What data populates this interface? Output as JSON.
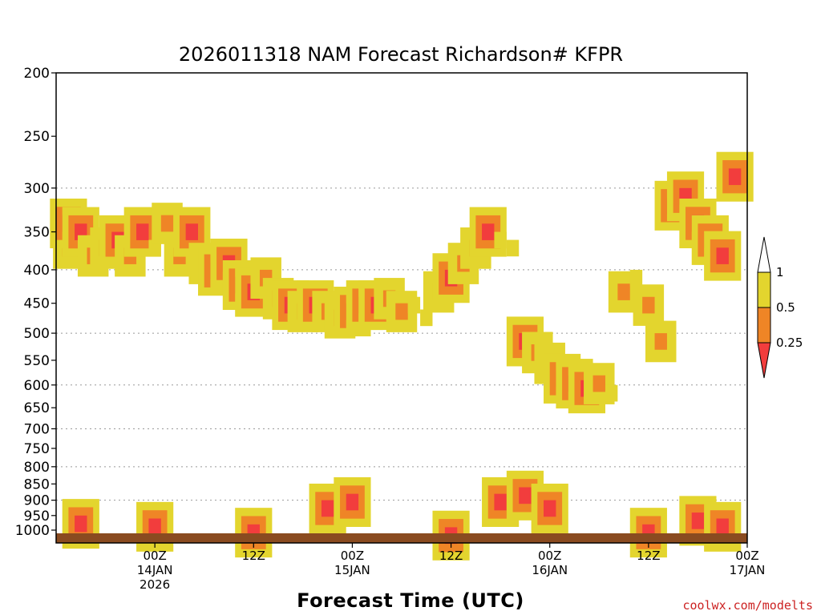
{
  "chart_data": {
    "type": "heatmap",
    "title": "2026011318 NAM Forecast Richardson# KFPR",
    "xlabel": "Forecast Time (UTC)",
    "ylabel": "",
    "credit": "coolwx.com/modelts",
    "y_ticks": [
      200,
      250,
      300,
      350,
      400,
      450,
      500,
      550,
      600,
      650,
      700,
      750,
      800,
      850,
      900,
      950,
      1000
    ],
    "y_gridlines": [
      300,
      400,
      500,
      600,
      700,
      800,
      900
    ],
    "ylim": [
      200,
      1015
    ],
    "x_range_hours": [
      -6,
      78
    ],
    "x_ticks": [
      {
        "hour": 6,
        "l1": "00Z",
        "l2": "14JAN",
        "l3": "2026"
      },
      {
        "hour": 18,
        "l1": "12Z",
        "l2": "",
        "l3": ""
      },
      {
        "hour": 30,
        "l1": "00Z",
        "l2": "15JAN",
        "l3": ""
      },
      {
        "hour": 42,
        "l1": "12Z",
        "l2": "",
        "l3": ""
      },
      {
        "hour": 54,
        "l1": "00Z",
        "l2": "16JAN",
        "l3": ""
      },
      {
        "hour": 66,
        "l1": "12Z",
        "l2": "",
        "l3": ""
      },
      {
        "hour": 78,
        "l1": "00Z",
        "l2": "17JAN",
        "l3": ""
      }
    ],
    "legend": {
      "labels": [
        "1",
        "0.5",
        "0.25"
      ],
      "colors": {
        "above_1": "#ffffff",
        "0.5-1": "#e3d52e",
        "0.25-0.5": "#ef8526",
        "below_0.25": "#f23d3d"
      }
    },
    "categories": [
      "<0.25",
      "0.25-0.5",
      "0.5-1",
      ">1"
    ],
    "cells": [
      {
        "t": -4.5,
        "p": 360,
        "c": "0.25-0.5"
      },
      {
        "t": -4.5,
        "p": 330,
        "c": "<0.25"
      },
      {
        "t": -3,
        "p": 340,
        "c": "<0.25"
      },
      {
        "t": -1.5,
        "p": 370,
        "c": "0.25-0.5"
      },
      {
        "t": 0,
        "p": 360,
        "c": "0.25-0.5"
      },
      {
        "t": 1.5,
        "p": 350,
        "c": "<0.25"
      },
      {
        "t": 3,
        "p": 370,
        "c": "0.25-0.5"
      },
      {
        "t": 4.5,
        "p": 340,
        "c": "<0.25"
      },
      {
        "t": 6,
        "p": 360,
        "c": "0.5-1"
      },
      {
        "t": 7.5,
        "p": 330,
        "c": "0.25-0.5"
      },
      {
        "t": 9,
        "p": 370,
        "c": "0.25-0.5"
      },
      {
        "t": 10.5,
        "p": 340,
        "c": "<0.25"
      },
      {
        "t": 12,
        "p": 380,
        "c": "0.25-0.5"
      },
      {
        "t": 13.5,
        "p": 390,
        "c": "<0.25"
      },
      {
        "t": 15,
        "p": 380,
        "c": "<0.25"
      },
      {
        "t": 16.5,
        "p": 410,
        "c": "<0.25"
      },
      {
        "t": 18,
        "p": 420,
        "c": "<0.25"
      },
      {
        "t": 19.5,
        "p": 400,
        "c": "0.25-0.5"
      },
      {
        "t": 21,
        "p": 430,
        "c": "0.25-0.5"
      },
      {
        "t": 22.5,
        "p": 440,
        "c": "<0.25"
      },
      {
        "t": 24,
        "p": 450,
        "c": "0.25-0.5"
      },
      {
        "t": 25.5,
        "p": 440,
        "c": "<0.25"
      },
      {
        "t": 27,
        "p": 450,
        "c": "0.25-0.5"
      },
      {
        "t": 28.5,
        "p": 460,
        "c": "0.25-0.5"
      },
      {
        "t": 30,
        "p": 450,
        "c": "<0.25"
      },
      {
        "t": 31.5,
        "p": 440,
        "c": "<0.25"
      },
      {
        "t": 33,
        "p": 440,
        "c": "<0.25"
      },
      {
        "t": 34.5,
        "p": 430,
        "c": "0.25-0.5"
      },
      {
        "t": 36,
        "p": 450,
        "c": "0.25-0.5"
      },
      {
        "t": 37.5,
        "p": 440,
        "c": "0.5-1"
      },
      {
        "t": 39,
        "p": 460,
        "c": "0.5-1"
      },
      {
        "t": 40.5,
        "p": 420,
        "c": "0.25-0.5"
      },
      {
        "t": 42,
        "p": 400,
        "c": "<0.25"
      },
      {
        "t": 43.5,
        "p": 380,
        "c": "0.25-0.5"
      },
      {
        "t": 45,
        "p": 360,
        "c": "0.25-0.5"
      },
      {
        "t": 46.5,
        "p": 340,
        "c": "<0.25"
      },
      {
        "t": 48,
        "p": 350,
        "c": "0.5-1"
      },
      {
        "t": 49.5,
        "p": 360,
        "c": "0.5-1"
      },
      {
        "t": 51,
        "p": 500,
        "c": "<0.25"
      },
      {
        "t": 52.5,
        "p": 520,
        "c": "0.25-0.5"
      },
      {
        "t": 54,
        "p": 540,
        "c": "0.25-0.5"
      },
      {
        "t": 55.5,
        "p": 570,
        "c": "<0.25"
      },
      {
        "t": 57,
        "p": 580,
        "c": "<0.25"
      },
      {
        "t": 58.5,
        "p": 590,
        "c": "<0.25"
      },
      {
        "t": 60,
        "p": 580,
        "c": "0.25-0.5"
      },
      {
        "t": 61.5,
        "p": 600,
        "c": "0.5-1"
      },
      {
        "t": 63,
        "p": 420,
        "c": "0.25-0.5"
      },
      {
        "t": 64.5,
        "p": 400,
        "c": "0.5-1"
      },
      {
        "t": 66,
        "p": 440,
        "c": "0.25-0.5"
      },
      {
        "t": 67.5,
        "p": 500,
        "c": "0.25-0.5"
      },
      {
        "t": 69,
        "p": 310,
        "c": "<0.25"
      },
      {
        "t": 70.5,
        "p": 300,
        "c": "<0.25"
      },
      {
        "t": 72,
        "p": 330,
        "c": "<0.25"
      },
      {
        "t": 73.5,
        "p": 350,
        "c": "<0.25"
      },
      {
        "t": 75,
        "p": 370,
        "c": "<0.25"
      },
      {
        "t": 76.5,
        "p": 280,
        "c": "<0.25"
      },
      {
        "t": -3,
        "p": 950,
        "c": "<0.25"
      },
      {
        "t": 6,
        "p": 960,
        "c": "<0.25"
      },
      {
        "t": 18,
        "p": 980,
        "c": "<0.25"
      },
      {
        "t": 27,
        "p": 900,
        "c": "<0.25"
      },
      {
        "t": 30,
        "p": 880,
        "c": "<0.25"
      },
      {
        "t": 42,
        "p": 990,
        "c": "<0.25"
      },
      {
        "t": 48,
        "p": 880,
        "c": "<0.25"
      },
      {
        "t": 51,
        "p": 860,
        "c": "<0.25"
      },
      {
        "t": 54,
        "p": 900,
        "c": "<0.25"
      },
      {
        "t": 66,
        "p": 980,
        "c": "<0.25"
      },
      {
        "t": 72,
        "p": 940,
        "c": "<0.25"
      },
      {
        "t": 75,
        "p": 960,
        "c": "<0.25"
      }
    ]
  }
}
